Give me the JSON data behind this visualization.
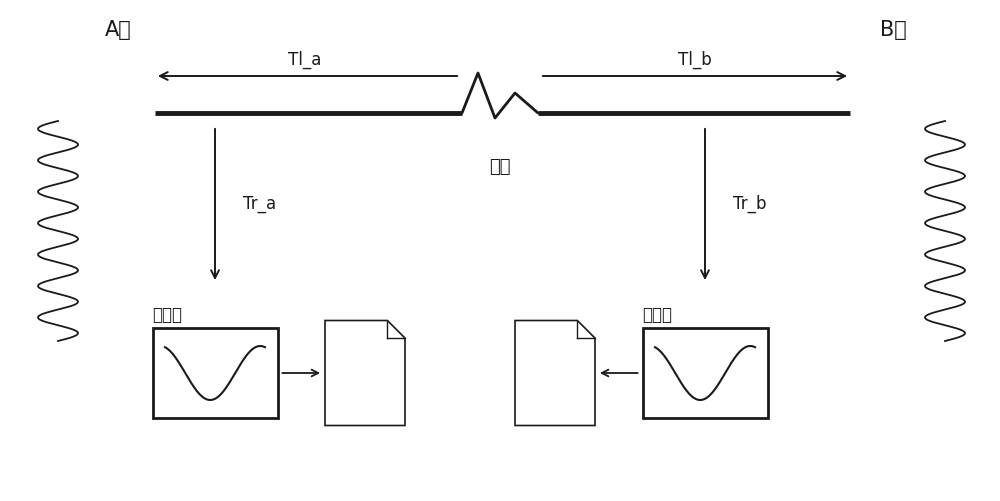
{
  "bg_color": "#ffffff",
  "line_color": "#1a1a1a",
  "text_color": "#1a1a1a",
  "station_a_label": "A站",
  "station_b_label": "B站",
  "fault_label": "故障",
  "tl_a_label": "Tl_a",
  "tl_b_label": "Tl_b",
  "tr_a_label": "Tr_a",
  "tr_b_label": "Tr_b",
  "recorder_label": "录波器",
  "font_size_station": 15,
  "font_size_label": 12,
  "font_size_fault": 13,
  "font_size_recorder": 12
}
